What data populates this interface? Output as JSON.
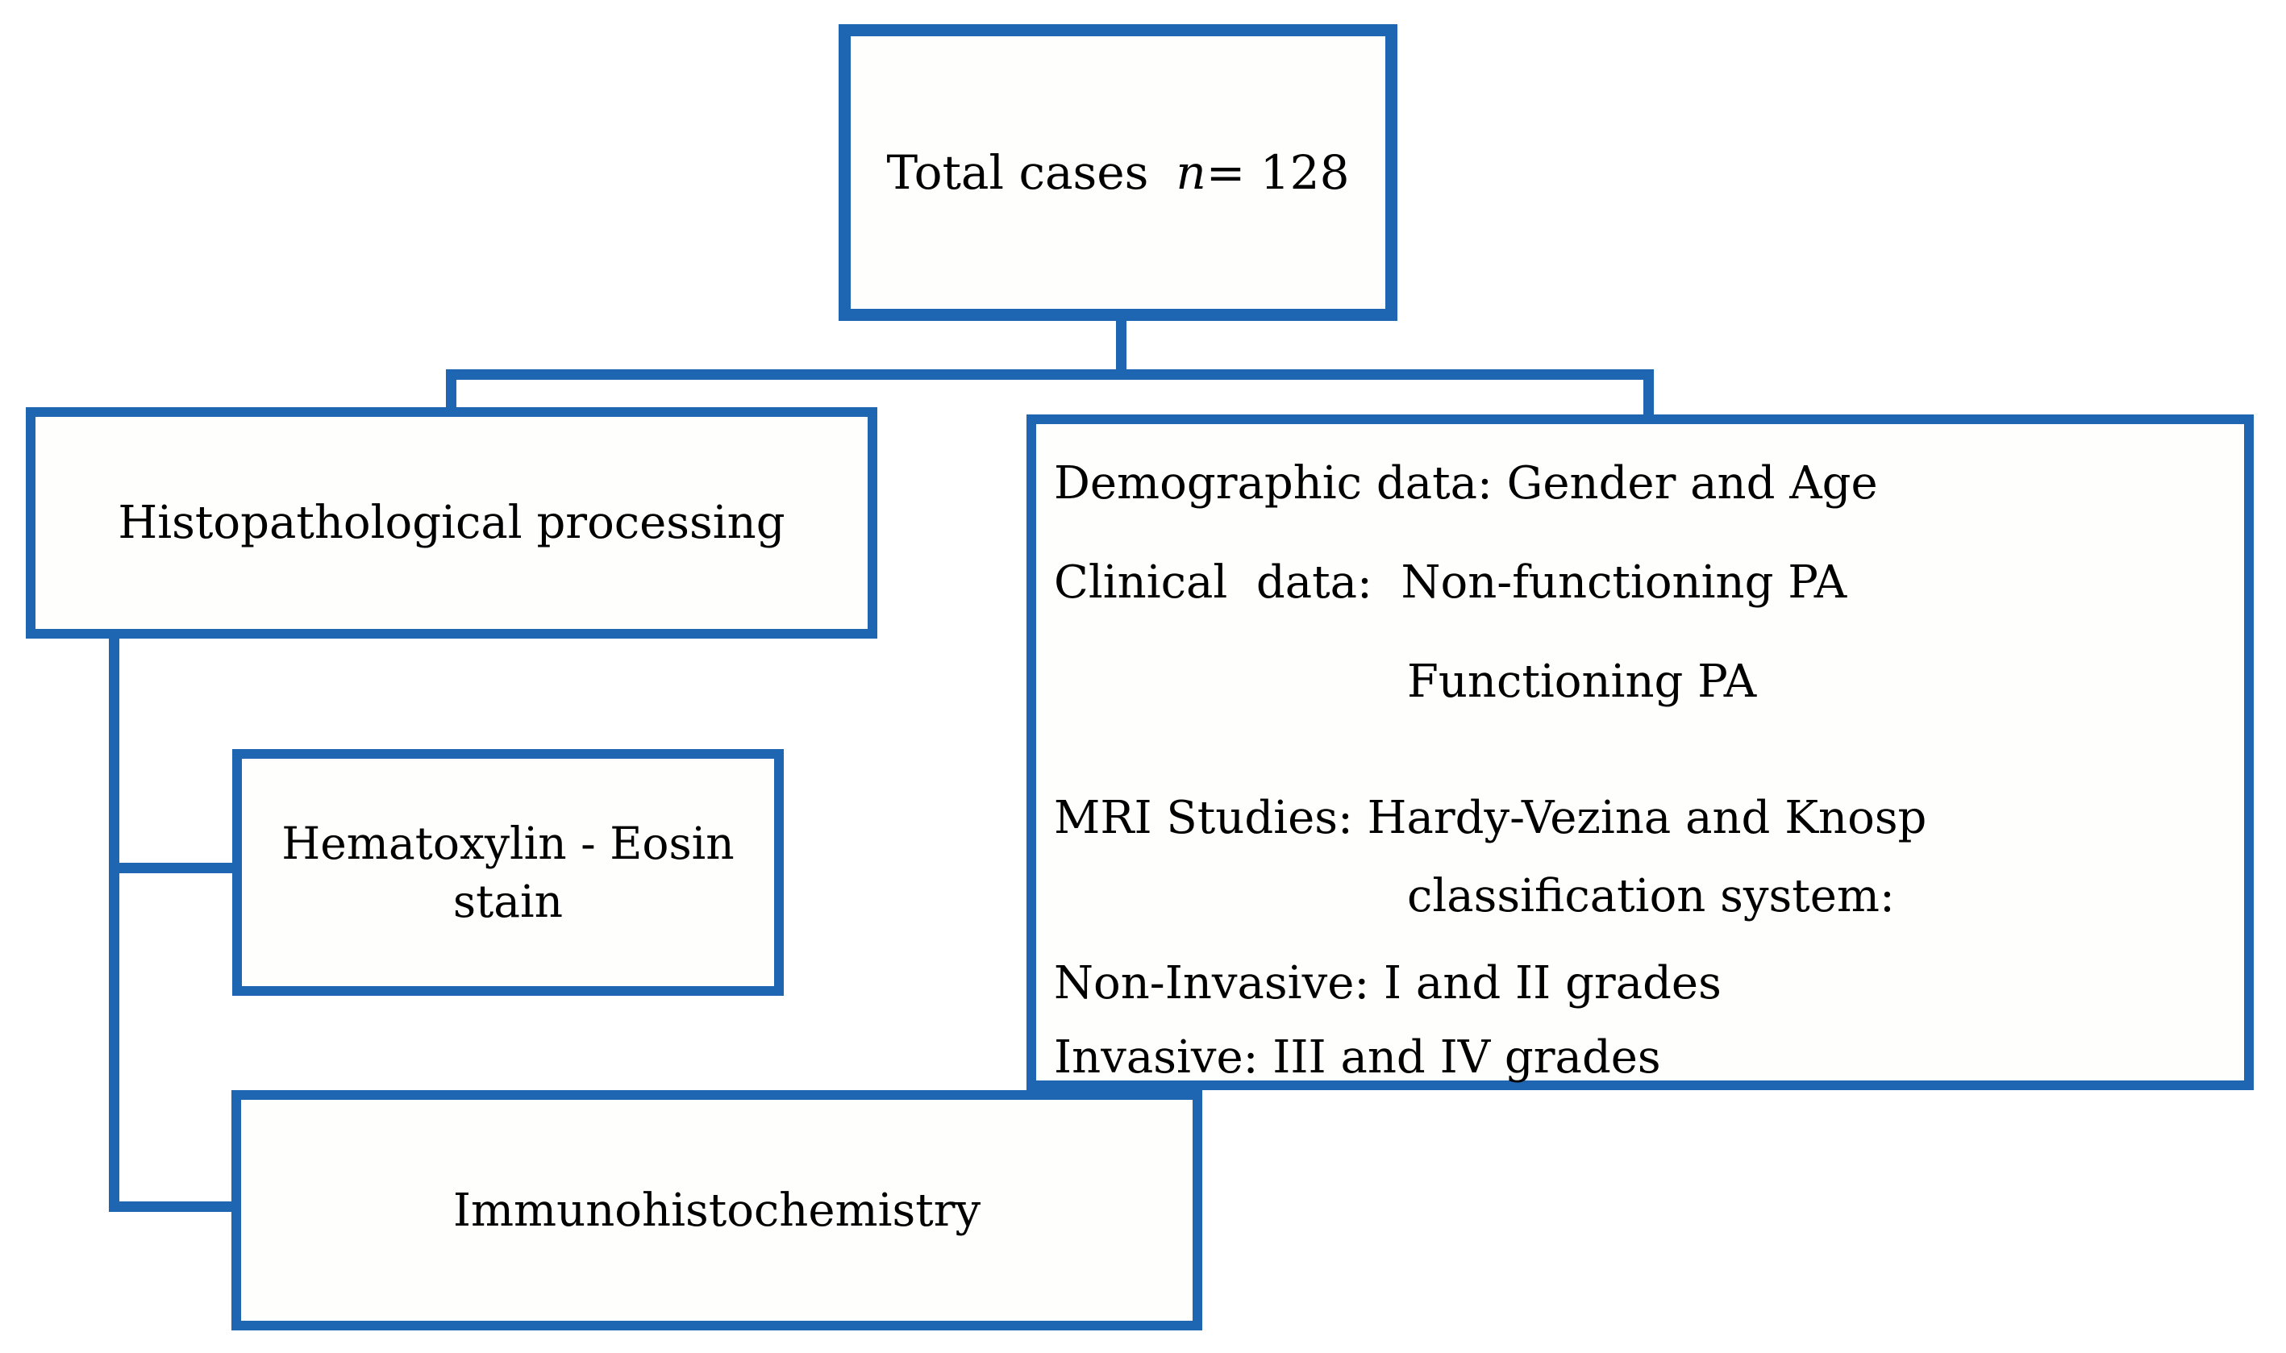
{
  "colors": {
    "border_blue": "#1e66b2",
    "text": "#000000",
    "background": "#ffffff"
  },
  "boxes": {
    "total": {
      "prefix": "Total cases",
      "n_italic": "n",
      "suffix": " = 128"
    },
    "histopathological": {
      "label": "Histopathological processing"
    },
    "clinical": {
      "lines": [
        "Demographic data: Gender and Age",
        "Clinical  data:  Non-functioning PA",
        "Functioning PA",
        "MRI Studies: Hardy-Vezina and Knosp",
        "classification system:",
        "Non-Invasive: I and II grades",
        "Invasive: III and IV grades"
      ]
    },
    "hematoxylin": {
      "line1": "Hematoxylin - Eosin",
      "line2": "stain"
    },
    "immunohistochemistry": {
      "label": "Immunohistochemistry"
    }
  }
}
